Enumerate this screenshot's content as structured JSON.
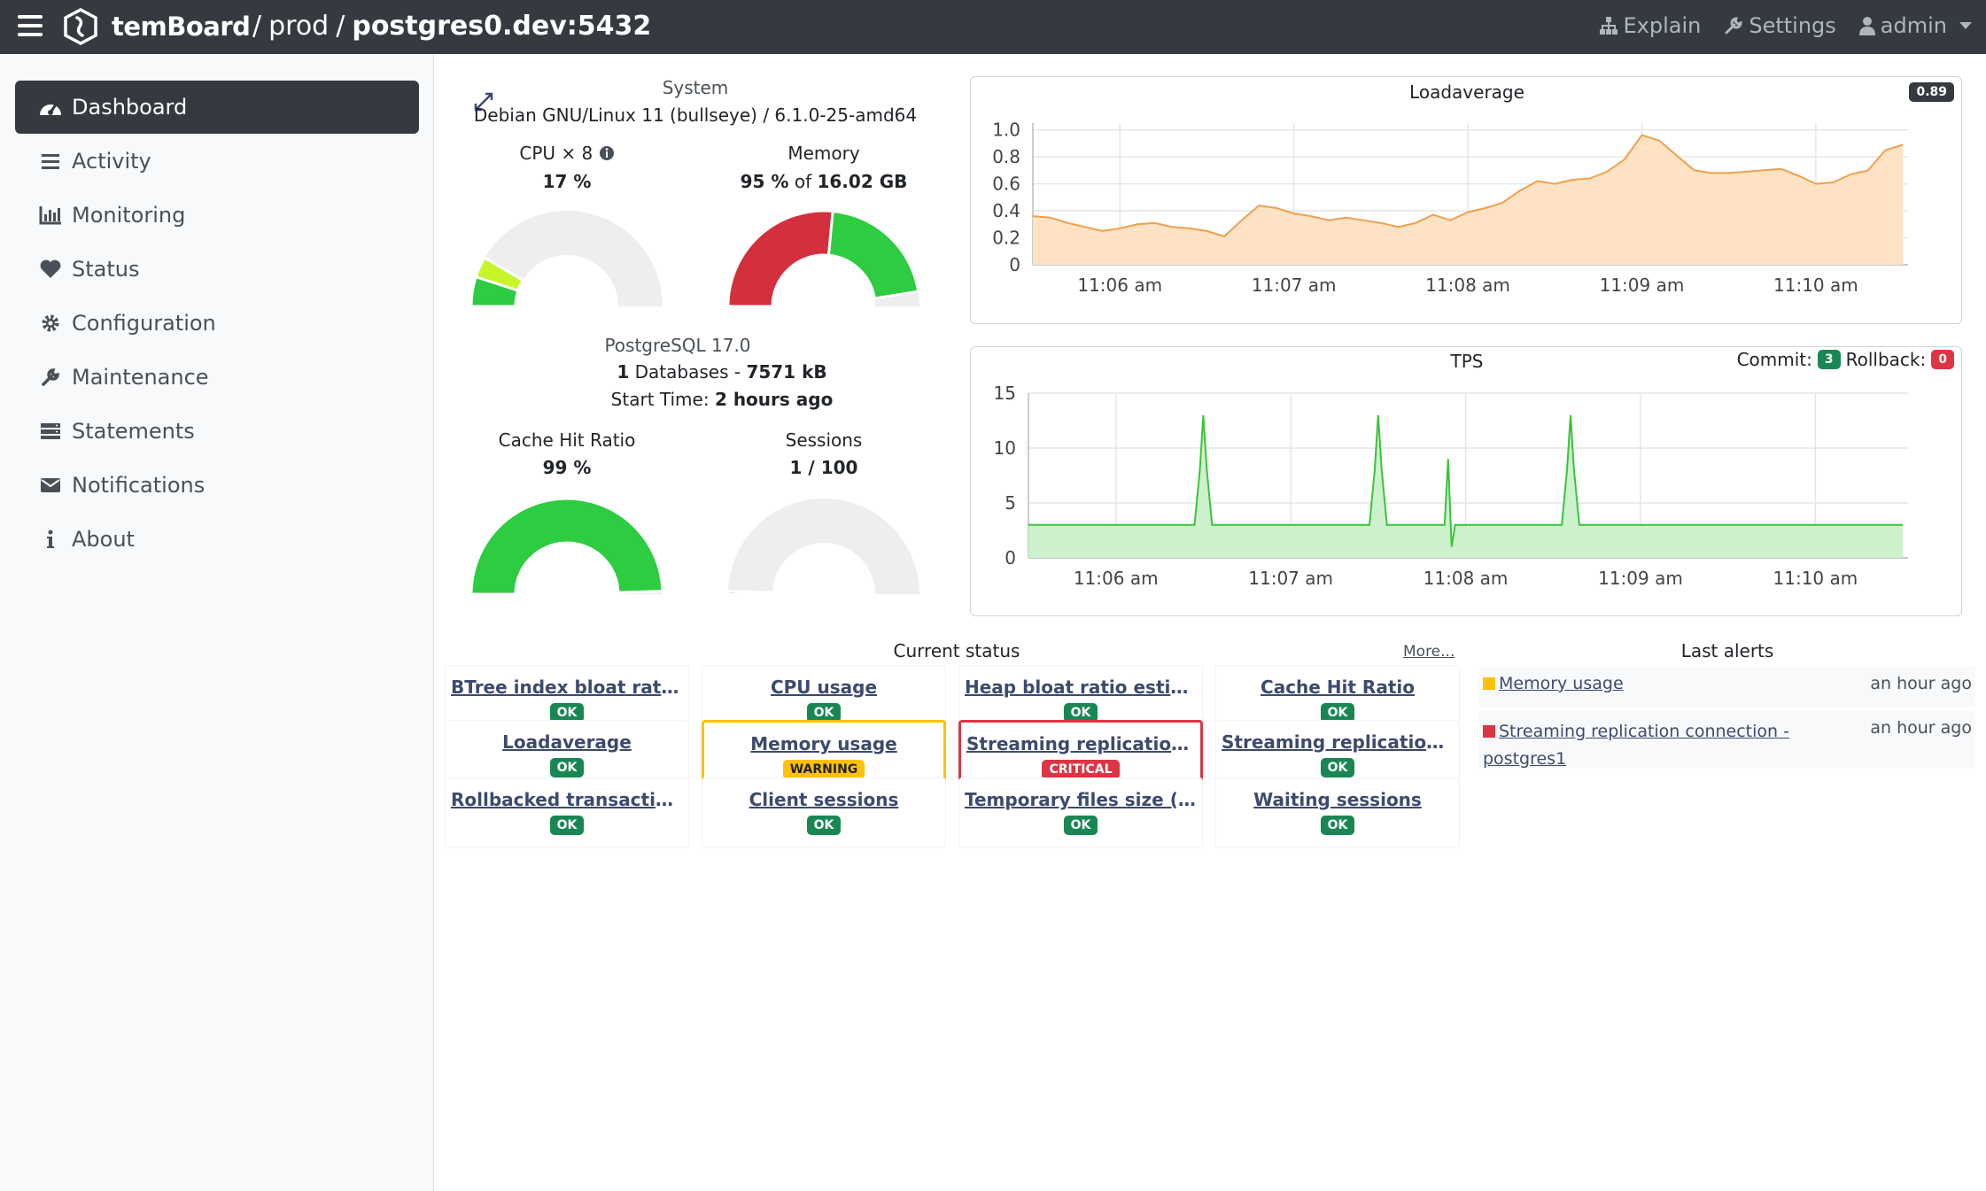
{
  "navbar": {
    "brand": "temBoard",
    "crumb_sep": "/",
    "env": "prod",
    "instance": "postgres0.dev:5432",
    "explain": "Explain",
    "settings": "Settings",
    "user": "admin"
  },
  "sidebar": {
    "items": [
      {
        "label": "Dashboard",
        "icon": "dashboard-icon",
        "active": true
      },
      {
        "label": "Activity",
        "icon": "list-icon"
      },
      {
        "label": "Monitoring",
        "icon": "bar-chart-icon"
      },
      {
        "label": "Status",
        "icon": "heart-icon"
      },
      {
        "label": "Configuration",
        "icon": "gear-icon"
      },
      {
        "label": "Maintenance",
        "icon": "wrench-icon"
      },
      {
        "label": "Statements",
        "icon": "server-icon"
      },
      {
        "label": "Notifications",
        "icon": "envelope-icon"
      },
      {
        "label": "About",
        "icon": "info-icon"
      }
    ]
  },
  "system": {
    "title": "System",
    "os": "Debian GNU/Linux 11 (bullseye) / 6.1.0-25-amd64",
    "cpu_label": "CPU × 8",
    "cpu_value": "17 %",
    "cpu_used": 0.17,
    "memory_label": "Memory",
    "memory_value": "95 %",
    "memory_of": " of ",
    "memory_total": "16.02 GB",
    "memory_used": 0.95,
    "pg_version": "PostgreSQL 17.0",
    "db_count": "1",
    "db_text_1": " Databases - ",
    "db_size": "7571 kB",
    "start_label": "Start Time: ",
    "start_value": "2 hours ago",
    "cache_label": "Cache Hit Ratio",
    "cache_value": "99 %",
    "cache_ratio": 0.99,
    "sessions_label": "Sessions",
    "sessions_value": "1 / 100",
    "sessions_ratio": 0.01
  },
  "loadavg": {
    "title": "Loadaverage",
    "current": "0.89"
  },
  "tps": {
    "title": "TPS",
    "commit_label": "Commit:",
    "commit_value": "3",
    "rollback_label": "Rollback:",
    "rollback_value": "0"
  },
  "chart_data": [
    {
      "type": "area",
      "title": "Loadaverage",
      "x_ticks": [
        "11:06 am",
        "11:07 am",
        "11:08 am",
        "11:09 am",
        "11:10 am"
      ],
      "y_ticks": [
        "0",
        "0.2",
        "0.4",
        "0.6",
        "0.8",
        "1.0"
      ],
      "ylim": [
        0,
        1.05
      ],
      "x_range_min": [
        0,
        5.03
      ],
      "series": [
        {
          "color": "#f0a050",
          "fill": "#fde3c4",
          "x": [
            0,
            0.1,
            0.2,
            0.3,
            0.4,
            0.5,
            0.6,
            0.7,
            0.8,
            0.9,
            1.0,
            1.1,
            1.2,
            1.3,
            1.4,
            1.5,
            1.6,
            1.7,
            1.8,
            1.9,
            2.0,
            2.1,
            2.2,
            2.3,
            2.4,
            2.5,
            2.6,
            2.7,
            2.8,
            2.9,
            3.0,
            3.1,
            3.2,
            3.3,
            3.4,
            3.5,
            3.6,
            3.7,
            3.8,
            3.9,
            4.0,
            4.1,
            4.2,
            4.3,
            4.4,
            4.5,
            4.6,
            4.7,
            4.8,
            4.9,
            5.0
          ],
          "y": [
            0.36,
            0.35,
            0.31,
            0.28,
            0.25,
            0.27,
            0.3,
            0.31,
            0.28,
            0.27,
            0.25,
            0.21,
            0.33,
            0.44,
            0.42,
            0.38,
            0.36,
            0.33,
            0.35,
            0.33,
            0.31,
            0.28,
            0.31,
            0.37,
            0.33,
            0.39,
            0.42,
            0.46,
            0.55,
            0.62,
            0.6,
            0.63,
            0.64,
            0.69,
            0.78,
            0.96,
            0.92,
            0.81,
            0.7,
            0.68,
            0.68,
            0.69,
            0.7,
            0.71,
            0.66,
            0.6,
            0.61,
            0.67,
            0.7,
            0.85,
            0.89
          ]
        }
      ]
    },
    {
      "type": "area",
      "title": "TPS",
      "x_ticks": [
        "11:06 am",
        "11:07 am",
        "11:08 am",
        "11:09 am",
        "11:10 am"
      ],
      "y_ticks": [
        "0",
        "5",
        "10",
        "15"
      ],
      "ylim": [
        0,
        15
      ],
      "x_range_min": [
        0,
        5.03
      ],
      "series": [
        {
          "color": "#3ac43a",
          "fill": "#cdf0cd",
          "x": [
            0,
            0.95,
            0.98,
            1.0,
            1.02,
            1.05,
            1.95,
            1.98,
            2.0,
            2.02,
            2.05,
            2.38,
            2.4,
            2.42,
            2.44,
            2.46,
            2.48,
            3.05,
            3.08,
            3.1,
            3.12,
            3.15,
            5.0
          ],
          "y": [
            3,
            3,
            8,
            13,
            8,
            3,
            3,
            8,
            13,
            8,
            3,
            3,
            9,
            1,
            3,
            3,
            3,
            3,
            8,
            13,
            8,
            3,
            3
          ]
        }
      ]
    }
  ],
  "current_status": {
    "title": "Current status",
    "more": "More...",
    "items": [
      {
        "label": "BTree index bloat ratio e...",
        "state": "OK"
      },
      {
        "label": "CPU usage",
        "state": "OK"
      },
      {
        "label": "Heap bloat ratio estimation",
        "state": "OK"
      },
      {
        "label": "Cache Hit Ratio",
        "state": "OK"
      },
      {
        "label": "Loadaverage",
        "state": "OK"
      },
      {
        "label": "Memory usage",
        "state": "WARNING"
      },
      {
        "label": "Streaming replication co...",
        "state": "CRITICAL"
      },
      {
        "label": "Streaming replication lag",
        "state": "OK"
      },
      {
        "label": "Rollbacked transactions",
        "state": "OK"
      },
      {
        "label": "Client sessions",
        "state": "OK"
      },
      {
        "label": "Temporary files size (delta)",
        "state": "OK"
      },
      {
        "label": "Waiting sessions",
        "state": "OK"
      }
    ]
  },
  "last_alerts": {
    "title": "Last alerts",
    "items": [
      {
        "label": "Memory usage",
        "when": "an hour ago",
        "color": "#ffc107"
      },
      {
        "label": "Streaming replication connection - postgres1",
        "when": "an hour ago",
        "color": "#dc3545"
      }
    ]
  },
  "colors": {
    "gauge_green": "#2ecc40",
    "gauge_red": "#d32f3c",
    "gauge_lime": "#c6f52a",
    "gauge_bg": "#eeeeee"
  }
}
